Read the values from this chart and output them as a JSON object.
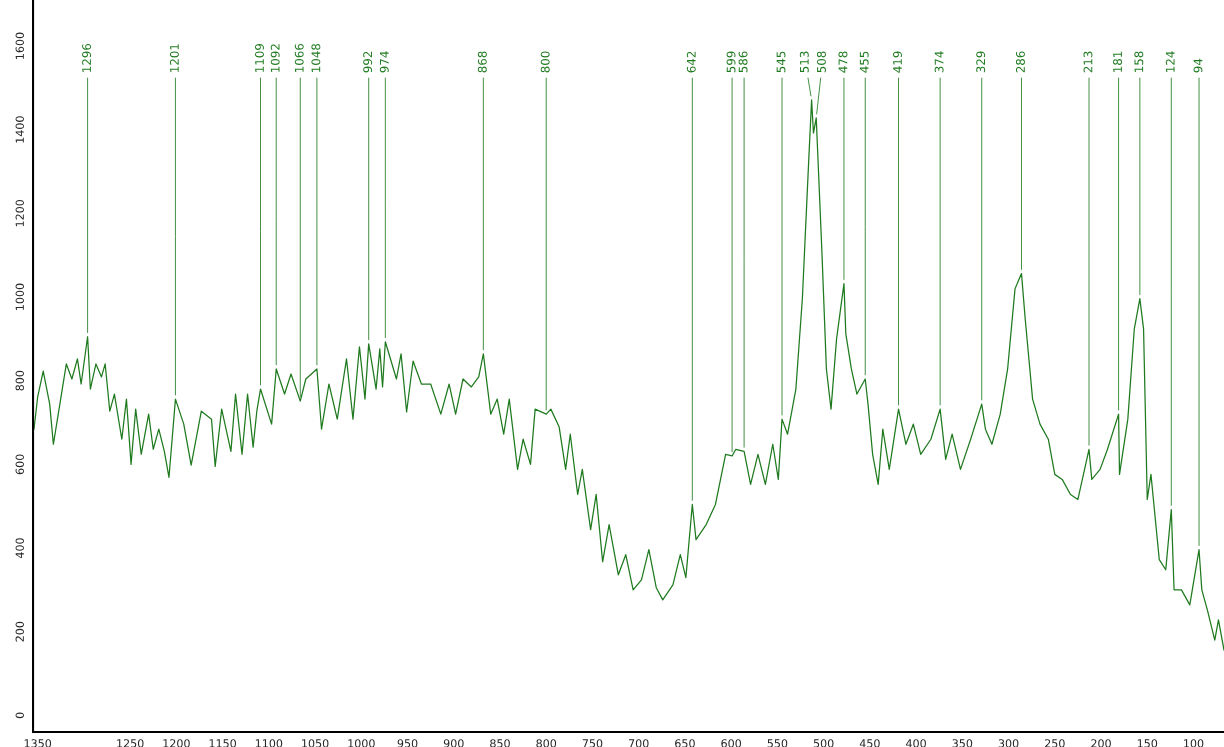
{
  "chart_data": {
    "type": "line",
    "xlim": [
      1355,
      67
    ],
    "ylim": [
      -40,
      1710
    ],
    "xticks": [
      1350,
      1250,
      1200,
      1150,
      1100,
      1050,
      1000,
      950,
      900,
      850,
      800,
      750,
      700,
      650,
      600,
      550,
      500,
      450,
      400,
      350,
      300,
      250,
      200,
      150,
      100
    ],
    "yticks": [
      0,
      200,
      400,
      600,
      800,
      1000,
      1200,
      1400,
      1600
    ],
    "grid": false,
    "marker": "none",
    "line_style": "solid",
    "series": [
      {
        "color": "#1f7a1f",
        "x": [
          1354,
          1350,
          1344,
          1337,
          1333,
          1326,
          1319,
          1313,
          1307,
          1303,
          1296,
          1293,
          1287,
          1281,
          1277,
          1272,
          1267,
          1259,
          1254,
          1249,
          1244,
          1238,
          1230,
          1225,
          1219,
          1213,
          1208,
          1201,
          1192,
          1184,
          1173,
          1162,
          1158,
          1151,
          1141,
          1136,
          1129,
          1123,
          1117,
          1113,
          1109,
          1097,
          1092,
          1083,
          1076,
          1066,
          1060,
          1048,
          1043,
          1035,
          1026,
          1016,
          1009,
          1002,
          996,
          992,
          984,
          980,
          977,
          974,
          962,
          957,
          951,
          944,
          935,
          925,
          914,
          905,
          898,
          890,
          881,
          873,
          868,
          860,
          853,
          846,
          840,
          831,
          825,
          817,
          812,
          800,
          795,
          786,
          779,
          774,
          766,
          761,
          752,
          746,
          739,
          732,
          722,
          714,
          706,
          697,
          689,
          681,
          674,
          663,
          655,
          649,
          642,
          638,
          627,
          617,
          606,
          599,
          595,
          586,
          579,
          571,
          563,
          555,
          549,
          545,
          539,
          530,
          523,
          516,
          513,
          511,
          508,
          502,
          497,
          492,
          486,
          478,
          476,
          470,
          464,
          455,
          452,
          447,
          441,
          436,
          429,
          419,
          411,
          403,
          395,
          384,
          374,
          368,
          361,
          352,
          341,
          329,
          325,
          318,
          309,
          301,
          293,
          286,
          282,
          274,
          266,
          257,
          250,
          242,
          233,
          225,
          213,
          210,
          201,
          193,
          181,
          180,
          171,
          164,
          158,
          154,
          150,
          146,
          137,
          130,
          124,
          121,
          113,
          104,
          94,
          91,
          85,
          77,
          73,
          67
        ],
        "values": [
          684,
          761,
          823,
          744,
          648,
          744,
          840,
          804,
          852,
          792,
          905,
          780,
          840,
          809,
          840,
          727,
          768,
          660,
          756,
          600,
          732,
          624,
          720,
          636,
          684,
          631,
          569,
          756,
          696,
          598,
          727,
          708,
          595,
          732,
          631,
          768,
          624,
          768,
          641,
          727,
          780,
          696,
          828,
          768,
          816,
          751,
          804,
          828,
          684,
          792,
          708,
          852,
          708,
          881,
          756,
          888,
          780,
          876,
          785,
          893,
          804,
          864,
          725,
          847,
          792,
          792,
          720,
          792,
          720,
          804,
          785,
          809,
          864,
          720,
          756,
          672,
          756,
          588,
          660,
          600,
          732,
          720,
          732,
          689,
          588,
          672,
          528,
          588,
          444,
          528,
          367,
          456,
          336,
          384,
          300,
          324,
          396,
          305,
          276,
          312,
          384,
          329,
          504,
          420,
          456,
          504,
          624,
          620,
          636,
          631,
          552,
          624,
          552,
          648,
          564,
          708,
          672,
          780,
          996,
          1332,
          1471,
          1392,
          1428,
          1116,
          828,
          732,
          900,
          1032,
          912,
          828,
          768,
          804,
          744,
          624,
          552,
          684,
          588,
          732,
          648,
          696,
          624,
          660,
          732,
          612,
          672,
          588,
          660,
          744,
          684,
          648,
          720,
          828,
          1020,
          1056,
          948,
          756,
          696,
          660,
          576,
          564,
          528,
          516,
          636,
          564,
          588,
          636,
          720,
          576,
          708,
          924,
          996,
          924,
          516,
          576,
          372,
          348,
          492,
          300,
          300,
          264,
          396,
          300,
          252,
          180,
          228,
          156
        ]
      }
    ],
    "annotations": [
      {
        "text": "1296",
        "x": 1296,
        "y": 905
      },
      {
        "text": "1201",
        "x": 1201,
        "y": 756
      },
      {
        "text": "1109",
        "x": 1109,
        "y": 780
      },
      {
        "text": "1092",
        "x": 1092,
        "y": 828
      },
      {
        "text": "1066",
        "x": 1066,
        "y": 751
      },
      {
        "text": "1048",
        "x": 1048,
        "y": 828
      },
      {
        "text": "992",
        "x": 992,
        "y": 888
      },
      {
        "text": "974",
        "x": 974,
        "y": 893
      },
      {
        "text": "868",
        "x": 868,
        "y": 864
      },
      {
        "text": "800",
        "x": 800,
        "y": 720
      },
      {
        "text": "642",
        "x": 642,
        "y": 504
      },
      {
        "text": "599",
        "x": 599,
        "y": 620
      },
      {
        "text": "586",
        "x": 586,
        "y": 631
      },
      {
        "text": "545",
        "x": 545,
        "y": 708
      },
      {
        "text": "513",
        "x": 513,
        "y": 1471
      },
      {
        "text": "508",
        "x": 508,
        "y": 1428
      },
      {
        "text": "478",
        "x": 478,
        "y": 1032
      },
      {
        "text": "455",
        "x": 455,
        "y": 804
      },
      {
        "text": "419",
        "x": 419,
        "y": 732
      },
      {
        "text": "374",
        "x": 374,
        "y": 732
      },
      {
        "text": "329",
        "x": 329,
        "y": 744
      },
      {
        "text": "286",
        "x": 286,
        "y": 1056
      },
      {
        "text": "213",
        "x": 213,
        "y": 636
      },
      {
        "text": "181",
        "x": 181,
        "y": 720
      },
      {
        "text": "158",
        "x": 158,
        "y": 996
      },
      {
        "text": "124",
        "x": 124,
        "y": 492
      },
      {
        "text": "94",
        "x": 94,
        "y": 396
      }
    ]
  }
}
